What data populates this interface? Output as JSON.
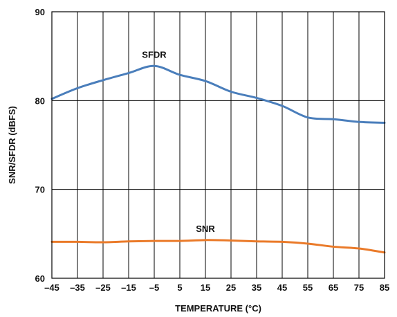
{
  "chart_data": {
    "type": "line",
    "xlabel": "TEMPERATURE (°C)",
    "ylabel": "SNR/SFDR (dBFS)",
    "xlim": [
      -45,
      85
    ],
    "ylim": [
      60,
      90
    ],
    "grid": true,
    "x_ticks": [
      "–45",
      "–35",
      "–25",
      "–15",
      "–5",
      "5",
      "15",
      "25",
      "35",
      "45",
      "55",
      "65",
      "75",
      "85"
    ],
    "y_ticks": [
      "60",
      "70",
      "80",
      "90"
    ],
    "x": [
      -45,
      -35,
      -25,
      -15,
      -5,
      5,
      15,
      25,
      35,
      45,
      55,
      65,
      75,
      85
    ],
    "series": [
      {
        "name": "SFDR",
        "color": "#4a7ebb",
        "values": [
          80.2,
          81.4,
          82.3,
          83.1,
          83.9,
          82.9,
          82.2,
          81.0,
          80.3,
          79.4,
          78.1,
          77.9,
          77.6,
          77.5
        ]
      },
      {
        "name": "SNR",
        "color": "#ea7a29",
        "values": [
          64.1,
          64.1,
          64.05,
          64.15,
          64.2,
          64.2,
          64.3,
          64.25,
          64.15,
          64.1,
          63.9,
          63.55,
          63.35,
          62.9
        ]
      }
    ]
  }
}
